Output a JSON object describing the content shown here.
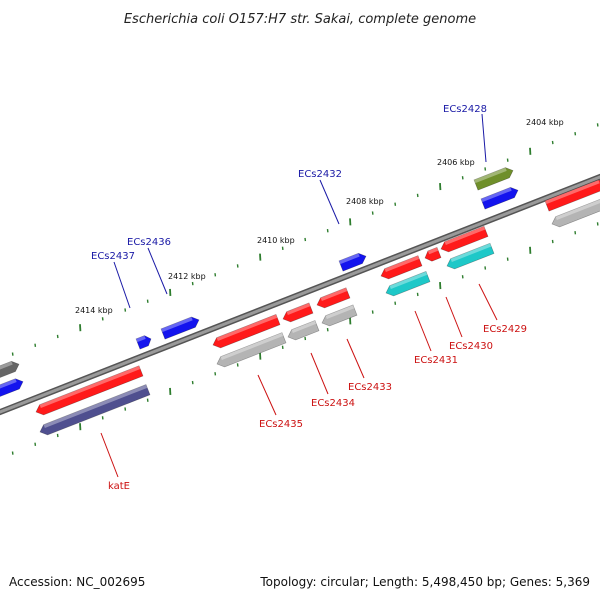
{
  "title": "Escherichia coli O157:H7 str. Sakai, complete genome",
  "accession": "Accession: NC_002695",
  "summary": "Topology: circular; Length: 5,498,450 bp; Genes: 5,369",
  "colors": {
    "backbone": "#777777",
    "tick": "#2e7d2e",
    "forward_label": "#1a1aa6",
    "reverse_label": "#cc1111",
    "red": "#ff1a1a",
    "blue": "#1414ee",
    "gray": "#b4b4b4",
    "cyan": "#1ec8c8",
    "olive": "#6f8f2a",
    "navy": "#4f4f8f",
    "darkgray": "#666666"
  },
  "ticks": [
    "2404 kbp",
    "2406 kbp",
    "2408 kbp",
    "2410 kbp",
    "2412 kbp",
    "2414 kbp"
  ],
  "forward_genes": [
    "ECs2428",
    "ECs2432",
    "ECs2436",
    "ECs2437"
  ],
  "reverse_genes": [
    "ECs2429",
    "ECs2430",
    "ECs2431",
    "ECs2433",
    "ECs2434",
    "ECs2435",
    "katE"
  ]
}
